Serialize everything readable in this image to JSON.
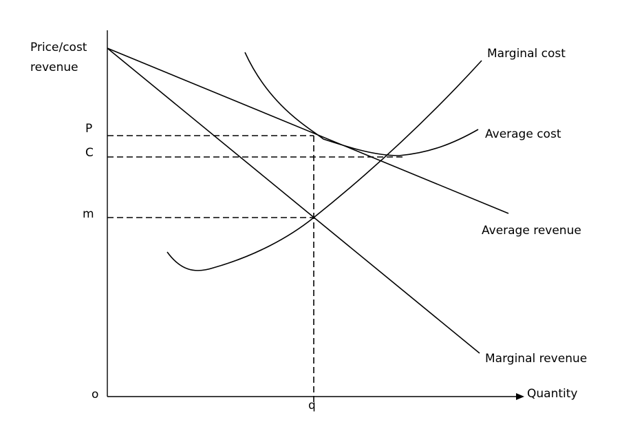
{
  "diagram": {
    "y_axis_label_line1": "Price/cost",
    "y_axis_label_line2": "revenue",
    "x_axis_label": "Quantity",
    "origin_label": "o",
    "q_label": "q",
    "tick_labels": {
      "p": "P",
      "c": "C",
      "m": "m"
    },
    "curves": {
      "marginal_cost": "Marginal cost",
      "average_cost": "Average cost",
      "average_revenue": "Average revenue",
      "marginal_revenue": "Marginal revenue"
    },
    "colors": {
      "line": "#000000",
      "background": "#ffffff"
    }
  }
}
